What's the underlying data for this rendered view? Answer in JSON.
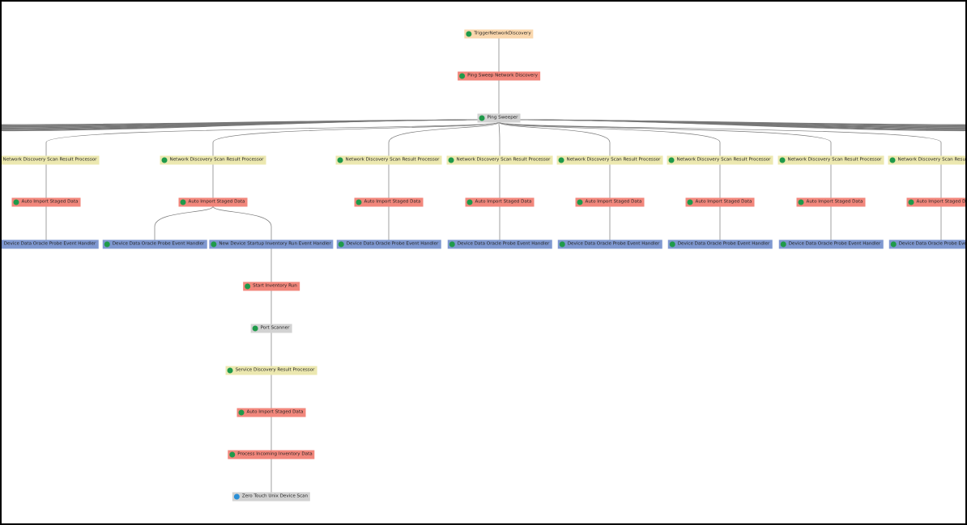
{
  "nodes": [
    {
      "label": "TriggerNetworkDiscovery"
    },
    {
      "label": "Ping Sweep Network Discovery"
    },
    {
      "label": "Ping Sweeper"
    },
    {
      "label": "Network Discovery Scan Result Processor"
    },
    {
      "label": "Network Discovery Scan Result Processor"
    },
    {
      "label": "Network Discovery Scan Result Processor"
    },
    {
      "label": "Network Discovery Scan Result Processor"
    },
    {
      "label": "Network Discovery Scan Result Processor"
    },
    {
      "label": "Network Discovery Scan Result Processor"
    },
    {
      "label": "Network Discovery Scan Result Processor"
    },
    {
      "label": "Network Discovery Scan Result Processor"
    },
    {
      "label": "Auto Import Staged Data"
    },
    {
      "label": "Auto Import Staged Data"
    },
    {
      "label": "Auto Import Staged Data"
    },
    {
      "label": "Auto Import Staged Data"
    },
    {
      "label": "Auto Import Staged Data"
    },
    {
      "label": "Auto Import Staged Data"
    },
    {
      "label": "Auto Import Staged Data"
    },
    {
      "label": "Auto Import Staged Data"
    },
    {
      "label": "Device Data Oracle Probe Event Handler"
    },
    {
      "label": "Device Data Oracle Probe Event Handler"
    },
    {
      "label": "Device Data Oracle Probe Event Handler"
    },
    {
      "label": "Device Data Oracle Probe Event Handler"
    },
    {
      "label": "Device Data Oracle Probe Event Handler"
    },
    {
      "label": "Device Data Oracle Probe Event Handler"
    },
    {
      "label": "Device Data Oracle Probe Event Handler"
    },
    {
      "label": "Device Data Oracle Probe Event Handler"
    },
    {
      "label": "New Device Startup Inventory Run Event Handler"
    },
    {
      "label": "Start Inventory Run"
    },
    {
      "label": "Port Scanner"
    },
    {
      "label": "Service Discovery Result Processor"
    },
    {
      "label": "Auto Import Staged Data"
    },
    {
      "label": "Process Incoming Inventory Data"
    },
    {
      "label": "Zero Touch Unix Device Scan"
    }
  ]
}
